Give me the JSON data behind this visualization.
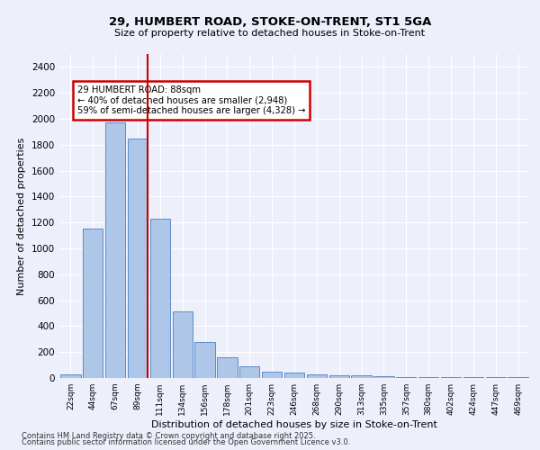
{
  "title1": "29, HUMBERT ROAD, STOKE-ON-TRENT, ST1 5GA",
  "title2": "Size of property relative to detached houses in Stoke-on-Trent",
  "xlabel": "Distribution of detached houses by size in Stoke-on-Trent",
  "ylabel": "Number of detached properties",
  "categories": [
    "22sqm",
    "44sqm",
    "67sqm",
    "89sqm",
    "111sqm",
    "134sqm",
    "156sqm",
    "178sqm",
    "201sqm",
    "223sqm",
    "246sqm",
    "268sqm",
    "290sqm",
    "313sqm",
    "335sqm",
    "357sqm",
    "380sqm",
    "402sqm",
    "424sqm",
    "447sqm",
    "469sqm"
  ],
  "values": [
    30,
    1150,
    1970,
    1850,
    1230,
    515,
    275,
    160,
    90,
    50,
    42,
    28,
    22,
    20,
    12,
    8,
    6,
    5,
    5,
    5,
    4
  ],
  "bar_color": "#aec6e8",
  "bar_edge_color": "#5b8cc8",
  "red_line_index": 3,
  "annotation_text": "29 HUMBERT ROAD: 88sqm\n← 40% of detached houses are smaller (2,948)\n59% of semi-detached houses are larger (4,328) →",
  "annotation_box_color": "#ffffff",
  "annotation_box_edge": "#cc0000",
  "annotation_text_color": "#000000",
  "red_line_color": "#cc0000",
  "background_color": "#edf0fb",
  "grid_color": "#ffffff",
  "ylim": [
    0,
    2500
  ],
  "yticks": [
    0,
    200,
    400,
    600,
    800,
    1000,
    1200,
    1400,
    1600,
    1800,
    2000,
    2200,
    2400
  ],
  "footer1": "Contains HM Land Registry data © Crown copyright and database right 2025.",
  "footer2": "Contains public sector information licensed under the Open Government Licence v3.0."
}
